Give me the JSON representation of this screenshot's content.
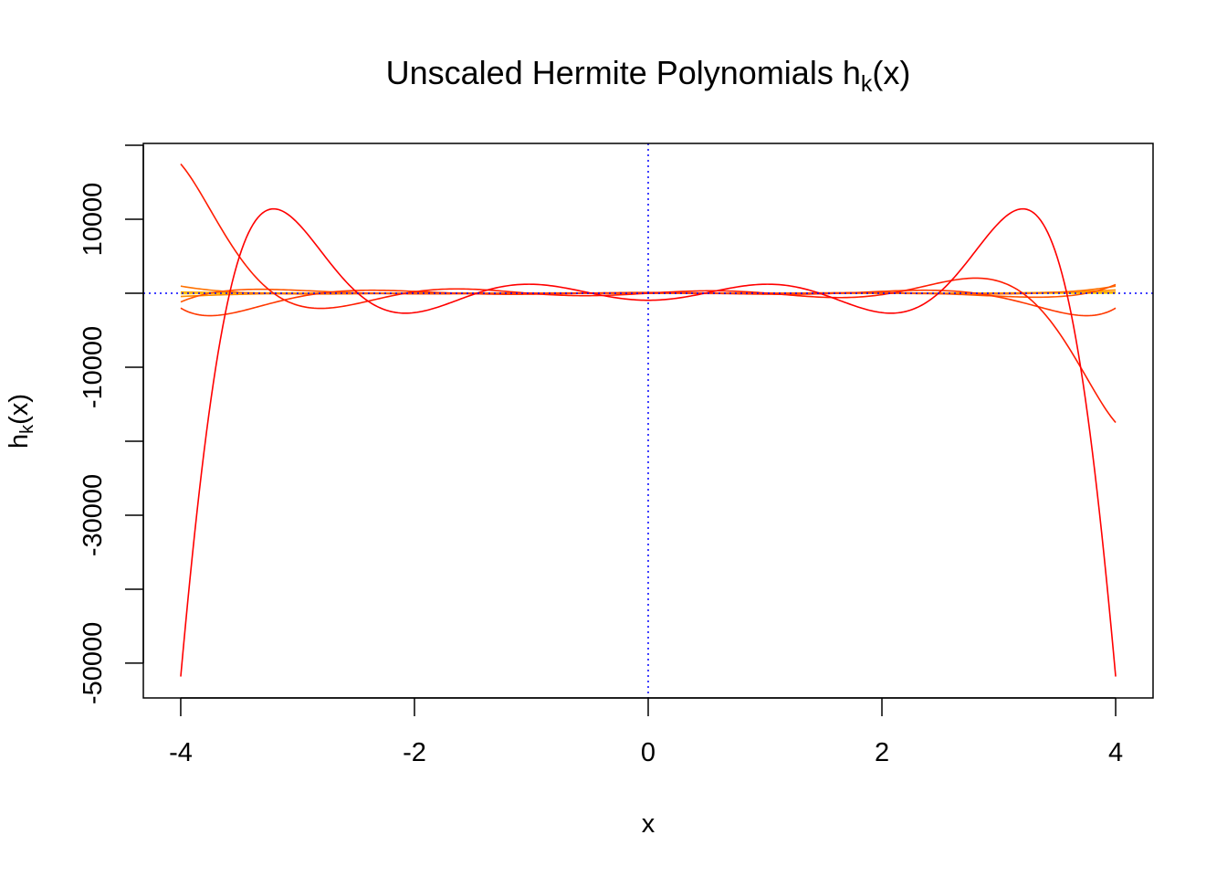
{
  "chart_data": {
    "type": "line",
    "title": {
      "main": "Unscaled Hermite Polynomials h",
      "sub": "k",
      "tail": "(x)"
    },
    "xlabel": "x",
    "ylabel": {
      "main": "h",
      "sub": "k",
      "tail": "(x)"
    },
    "xlim": [
      -4.32,
      4.32
    ],
    "ylim": [
      -54700,
      20250
    ],
    "x_ticks": [
      -4,
      -2,
      0,
      2,
      4
    ],
    "x_tick_labels": [
      "-4",
      "-2",
      "0",
      "2",
      "4"
    ],
    "y_ticks": [
      20000,
      10000,
      0,
      -10000,
      -20000,
      -30000,
      -40000,
      -50000
    ],
    "y_tick_labels": [
      "",
      "10000",
      "",
      "-10000",
      "",
      "-30000",
      "",
      "-50000"
    ],
    "x_range": [
      -4,
      4
    ],
    "grid": false,
    "reference_lines": [
      {
        "orientation": "horizontal",
        "value": 0,
        "color": "#0000FF",
        "style": "dotted"
      },
      {
        "orientation": "vertical",
        "value": 0,
        "color": "#0000FF",
        "style": "dotted"
      }
    ],
    "series": [
      {
        "degree": 0,
        "color": "#FFFFBF"
      },
      {
        "degree": 1,
        "color": "#FFFF40"
      },
      {
        "degree": 2,
        "color": "#FFE300"
      },
      {
        "degree": 3,
        "color": "#FFC600"
      },
      {
        "degree": 4,
        "color": "#FFAA00"
      },
      {
        "degree": 5,
        "color": "#FF8E00"
      },
      {
        "degree": 6,
        "color": "#FF7100"
      },
      {
        "degree": 7,
        "color": "#FF5500"
      },
      {
        "degree": 8,
        "color": "#FF3900"
      },
      {
        "degree": 9,
        "color": "#FF1C00"
      },
      {
        "degree": 10,
        "color": "#FF0000"
      }
    ]
  }
}
